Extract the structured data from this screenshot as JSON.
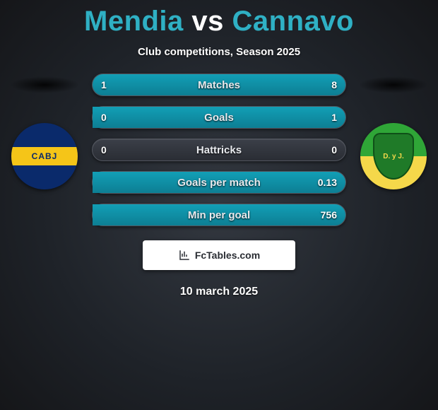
{
  "header": {
    "player1": "Mendia",
    "vs": "vs",
    "player2": "Cannavo",
    "title_color": "#2fb0c4",
    "subtitle": "Club competitions, Season 2025"
  },
  "crests": {
    "left": {
      "name": "boca-crest",
      "text": "CABJ",
      "bg": "#0a2a6b",
      "band": "#f5c518"
    },
    "right": {
      "name": "defensa-crest",
      "text": "D. y J.",
      "bg_top": "#2fa637",
      "bg_bottom": "#f5d84a"
    }
  },
  "comparison": {
    "bar_bg": "#2a2d34",
    "fill_color": "#129fb6",
    "rows": [
      {
        "label": "Matches",
        "left": "1",
        "right": "8",
        "left_pct": 11,
        "right_pct": 89
      },
      {
        "label": "Goals",
        "left": "0",
        "right": "1",
        "left_pct": 0,
        "right_pct": 100
      },
      {
        "label": "Hattricks",
        "left": "0",
        "right": "0",
        "left_pct": 0,
        "right_pct": 0
      },
      {
        "label": "Goals per match",
        "left": "",
        "right": "0.13",
        "left_pct": 0,
        "right_pct": 100
      },
      {
        "label": "Min per goal",
        "left": "",
        "right": "756",
        "left_pct": 0,
        "right_pct": 100
      }
    ]
  },
  "attribution": {
    "text": "FcTables.com"
  },
  "date": "10 march 2025",
  "colors": {
    "page_bg_center": "#333840",
    "page_bg_edge": "#151619",
    "text": "#ffffff"
  }
}
